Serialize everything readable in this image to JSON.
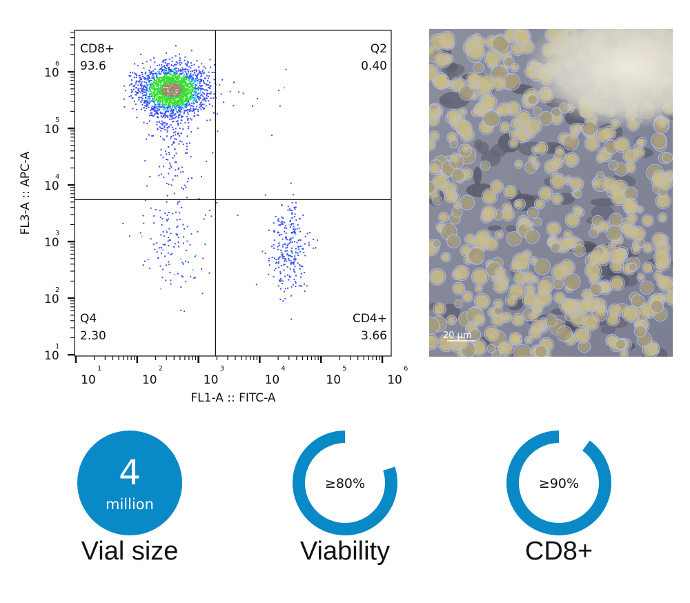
{
  "chart_data": {
    "type": "scatter",
    "subtype": "flow-cytometry-dot-plot",
    "xlabel": "FL1-A :: FITC-A",
    "ylabel": "FL3-A :: APC-A",
    "xscale": "log",
    "yscale": "log",
    "xlim": [
      9.5,
      1400000
    ],
    "ylim": [
      9.5,
      5400000
    ],
    "x_ticks": [
      {
        "base": "10",
        "exp": "1",
        "value": 10
      },
      {
        "base": "10",
        "exp": "2",
        "value": 100
      },
      {
        "base": "10",
        "exp": "3",
        "value": 1000
      },
      {
        "base": "10",
        "exp": "4",
        "value": 10000
      },
      {
        "base": "10",
        "exp": "5",
        "value": 100000
      },
      {
        "base": "10",
        "exp": "6",
        "value": 1000000
      }
    ],
    "y_ticks": [
      {
        "base": "10",
        "exp": "1",
        "value": 10
      },
      {
        "base": "10",
        "exp": "2",
        "value": 100
      },
      {
        "base": "10",
        "exp": "3",
        "value": 1000
      },
      {
        "base": "10",
        "exp": "4",
        "value": 10000
      },
      {
        "base": "10",
        "exp": "5",
        "value": 100000
      },
      {
        "base": "10",
        "exp": "6",
        "value": 1000000
      }
    ],
    "gate": {
      "x": 1900,
      "y": 5500
    },
    "quadrants": [
      {
        "name": "CD8+",
        "value": "93.6",
        "position": "top-left"
      },
      {
        "name": "Q2",
        "value": "0.40",
        "position": "top-right"
      },
      {
        "name": "Q4",
        "value": "2.30",
        "position": "bottom-left"
      },
      {
        "name": "CD4+",
        "value": "3.66",
        "position": "bottom-right"
      }
    ],
    "populations": [
      {
        "quadrant": "CD8+",
        "center": [
          370,
          480000
        ],
        "percent": 93.6
      },
      {
        "quadrant": "CD4+",
        "center": [
          30000,
          760
        ],
        "percent": 3.66
      },
      {
        "quadrant": "Q4",
        "center": [
          400,
          900
        ],
        "percent": 2.3
      },
      {
        "quadrant": "Q2",
        "center": [
          8000,
          200000
        ],
        "percent": 0.4
      }
    ],
    "density_colors": [
      "#3a4df0",
      "#2ad3e0",
      "#33e033",
      "#9a8a6a"
    ],
    "grid": false,
    "legend": "none"
  },
  "micrograph": {
    "scale_bar": "20 µm"
  },
  "stats": [
    {
      "value": "4",
      "unit": "million",
      "label": "Vial size",
      "style": "filled"
    },
    {
      "value": "≥80%",
      "fraction": 0.8,
      "label": "Viability",
      "style": "ring"
    },
    {
      "value": "≥90%",
      "fraction": 0.9,
      "label": "CD8+",
      "style": "ring"
    }
  ],
  "colors": {
    "accent": "#0a89c7",
    "text": "#111111"
  }
}
